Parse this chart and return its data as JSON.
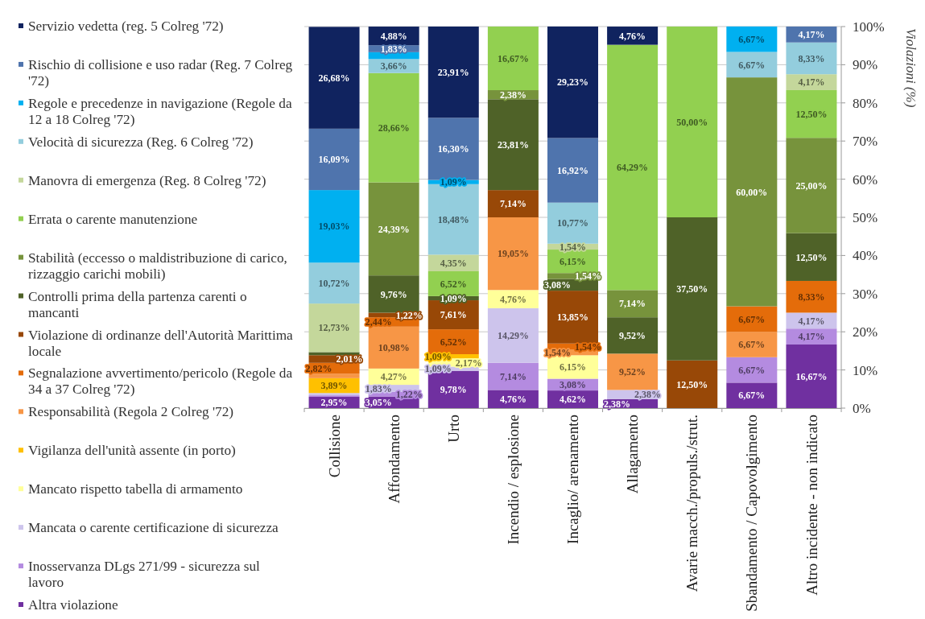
{
  "chart_data": {
    "type": "bar",
    "stacked": true,
    "categories": [
      "Collisione",
      "Affondamento",
      "Urto",
      "Incendio / esplosione",
      "Incaglio/ arenamento",
      "Allagamento",
      "Avarie macch./propuls./strut.",
      "Sbandamento / Capovolgimento",
      "Altro incidente - non indicato"
    ],
    "series": [
      {
        "name": "Altra violazione",
        "color": "#7030a0",
        "values": [
          2.95,
          3.05,
          9.78,
          4.76,
          4.62,
          2.38,
          null,
          6.67,
          16.67
        ],
        "value_labels": [
          "2,95%",
          "3,05%",
          "9,78%",
          "4,76%",
          "4,62%",
          "2,38%",
          null,
          "6,67%",
          "16,67%"
        ]
      },
      {
        "name": "Inosservanza DLgs 271/99 - sicurezza sul lavoro",
        "color": "#b48be0",
        "values": [
          0.4,
          1.22,
          null,
          7.14,
          3.08,
          null,
          null,
          6.67,
          4.17
        ],
        "value_labels": [
          null,
          "1,22%",
          null,
          "7,14%",
          "3,08%",
          null,
          null,
          "6,67%",
          "4,17%"
        ]
      },
      {
        "name": "Mancata o carente certificazione di sicurezza",
        "color": "#cdc4ec",
        "values": [
          0.6,
          1.83,
          1.09,
          14.29,
          null,
          2.38,
          null,
          null,
          4.17
        ],
        "value_labels": [
          null,
          "1,83%",
          "1,09%",
          "14,29%",
          null,
          "2,38%",
          null,
          null,
          "4,17%"
        ]
      },
      {
        "name": "Mancato rispetto tabella di armamento",
        "color": "#ffff99",
        "values": [
          null,
          4.27,
          2.17,
          4.76,
          6.15,
          null,
          null,
          null,
          null
        ],
        "value_labels": [
          null,
          "4,27%",
          "2,17%",
          "4,76%",
          "6,15%",
          null,
          null,
          null,
          null
        ]
      },
      {
        "name": "Vigilanza dell'unità assente (in porto)",
        "color": "#ffc000",
        "values": [
          3.89,
          null,
          1.09,
          null,
          null,
          null,
          null,
          null,
          null
        ],
        "value_labels": [
          "3,89%",
          null,
          "1,09%",
          null,
          null,
          null,
          null,
          null,
          null
        ]
      },
      {
        "name": "Responsabilità (Regola 2 Colreg '72)",
        "color": "#f79646",
        "values": [
          1.2,
          10.98,
          null,
          19.05,
          1.54,
          9.52,
          null,
          6.67,
          null
        ],
        "value_labels": [
          null,
          "10,98%",
          null,
          "19,05%",
          "1,54%",
          "9,52%",
          null,
          "6,67%",
          null
        ]
      },
      {
        "name": "Segnalazione avvertimento/pericolo (Regole da 34 a 37 Colreg '72)",
        "color": "#e46c0a",
        "values": [
          2.82,
          2.44,
          6.52,
          null,
          1.54,
          null,
          null,
          6.67,
          8.33
        ],
        "value_labels": [
          "2,82%",
          "2,44%",
          "6,52%",
          null,
          "1,54%",
          null,
          null,
          "6,67%",
          "8,33%"
        ]
      },
      {
        "name": "Violazione di ordinanze dell'Autorità Marittima locale",
        "color": "#984807",
        "values": [
          2.01,
          1.22,
          7.61,
          7.14,
          13.85,
          null,
          12.5,
          null,
          null
        ],
        "value_labels": [
          "2,01%",
          "1,22%",
          "7,61%",
          "7,14%",
          "13,85%",
          null,
          "12,50%",
          null,
          null
        ]
      },
      {
        "name": "Controlli prima della partenza carenti o mancanti",
        "color": "#4f6228",
        "values": [
          0.8,
          9.76,
          1.09,
          23.81,
          3.08,
          9.52,
          37.5,
          null,
          12.5
        ],
        "value_labels": [
          null,
          "9,76%",
          "1,09%",
          "23,81%",
          "3,08%",
          "9,52%",
          "37,50%",
          null,
          "12,50%"
        ]
      },
      {
        "name": "Stabilità (eccesso o maldistribuzione di carico, rizzaggio carichi mobili)",
        "color": "#77933c",
        "values": [
          null,
          24.39,
          null,
          2.38,
          1.54,
          7.14,
          null,
          60,
          25
        ],
        "value_labels": [
          null,
          "24,39%",
          null,
          "2,38%",
          "1,54%",
          "7,14%",
          null,
          "60,00%",
          "25,00%"
        ]
      },
      {
        "name": "Errata o carente manutenzione",
        "color": "#92d050",
        "values": [
          null,
          28.66,
          6.52,
          16.67,
          6.15,
          64.29,
          50,
          null,
          12.5
        ],
        "value_labels": [
          null,
          "28,66%",
          "6,52%",
          "16,67%",
          "6,15%",
          "64,29%",
          "50,00%",
          null,
          "12,50%"
        ]
      },
      {
        "name": "Manovra di emergenza (Reg. 8 Colreg '72)",
        "color": "#c4d79b",
        "values": [
          12.73,
          null,
          4.35,
          null,
          1.54,
          null,
          null,
          null,
          4.17
        ],
        "value_labels": [
          "12,73%",
          null,
          "4,35%",
          null,
          "1,54%",
          null,
          null,
          null,
          "4,17%"
        ]
      },
      {
        "name": "Velocità di sicurezza (Reg. 6 Colreg '72)",
        "color": "#93cddd",
        "values": [
          10.72,
          3.66,
          18.48,
          null,
          10.77,
          null,
          null,
          6.67,
          8.33
        ],
        "value_labels": [
          "10,72%",
          "3,66%",
          "18,48%",
          null,
          "10,77%",
          null,
          null,
          "6,67%",
          "8,33%"
        ]
      },
      {
        "name": "Regole e precedenze in navigazione (Regole da 12 a 18 Colreg '72)",
        "color": "#00b0f0",
        "values": [
          19.03,
          1.8,
          1.09,
          null,
          null,
          null,
          null,
          6.67,
          null
        ],
        "value_labels": [
          "19,03%",
          null,
          "1,09%",
          null,
          null,
          null,
          null,
          "6,67%",
          null
        ]
      },
      {
        "name": "Rischio di collisione e uso radar (Reg. 7 Colreg '72)",
        "color": "#4f74ad",
        "values": [
          16.09,
          1.83,
          16.3,
          null,
          16.92,
          null,
          null,
          null,
          4.17
        ],
        "value_labels": [
          "16,09%",
          "1,83%",
          "16,30%",
          null,
          "16,92%",
          null,
          null,
          null,
          "4,17%"
        ]
      },
      {
        "name": "Servizio vedetta (reg. 5 Colreg '72)",
        "color": "#10235f",
        "values": [
          26.68,
          4.88,
          23.91,
          null,
          29.23,
          4.76,
          null,
          null,
          null
        ],
        "value_labels": [
          "26,68%",
          "4,88%",
          "23,91%",
          null,
          "29,23%",
          "4,76%",
          null,
          null,
          null
        ]
      }
    ],
    "ylabel": "Violazioni (%)",
    "ylim": [
      0,
      100
    ],
    "yticks": [
      {
        "value": 0,
        "label": "0%"
      },
      {
        "value": 10,
        "label": "10%"
      },
      {
        "value": 20,
        "label": "20%"
      },
      {
        "value": 30,
        "label": "30%"
      },
      {
        "value": 40,
        "label": "40%"
      },
      {
        "value": 50,
        "label": "50%"
      },
      {
        "value": 60,
        "label": "60%"
      },
      {
        "value": 70,
        "label": "70%"
      },
      {
        "value": 80,
        "label": "80%"
      },
      {
        "value": 90,
        "label": "90%"
      },
      {
        "value": 100,
        "label": "100%"
      }
    ],
    "grid": "y",
    "legend": "left"
  }
}
